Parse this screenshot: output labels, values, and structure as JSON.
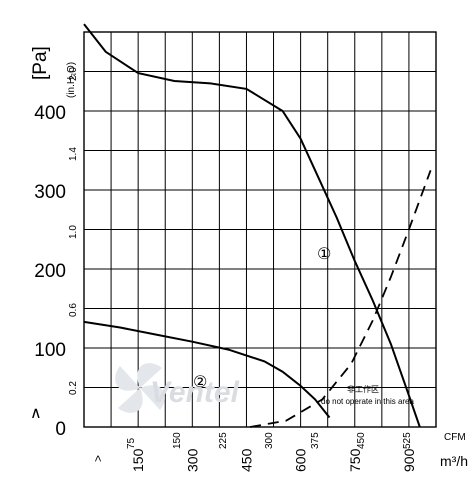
{
  "chart_data": {
    "type": "line",
    "title": "",
    "ylabel": "[Pa]",
    "ylabel_secondary": "(in.H₂O)",
    "xlabel_cfm": "CFM",
    "xlabel_m3h": "m³/h",
    "y_ticks_pa": [
      "0",
      "100",
      "200",
      "300",
      "400"
    ],
    "y_ticks_inh2o": [
      "0.2",
      "0.6",
      "1.0",
      "1.4",
      "2.0"
    ],
    "x_ticks_cfm": [
      "75",
      "150",
      "225",
      "300",
      "375",
      "450",
      "525"
    ],
    "x_ticks_m3h": [
      "150",
      "300",
      "450",
      "600",
      "750",
      "900"
    ],
    "xlim_m3h": [
      0,
      975
    ],
    "ylim_pa": [
      0,
      500
    ],
    "grid": true,
    "series": [
      {
        "name": "①",
        "style": "solid",
        "x": [
          0,
          60,
          150,
          250,
          350,
          450,
          550,
          600,
          650,
          700,
          750,
          800,
          850,
          900,
          930
        ],
        "y": [
          510,
          475,
          448,
          438,
          435,
          428,
          400,
          365,
          315,
          265,
          210,
          160,
          105,
          40,
          0
        ]
      },
      {
        "name": "②",
        "style": "solid",
        "x": [
          0,
          100,
          200,
          300,
          400,
          500,
          550,
          600,
          640,
          680
        ],
        "y": [
          133,
          126,
          117,
          108,
          98,
          83,
          70,
          52,
          35,
          12
        ]
      },
      {
        "name": "",
        "style": "dashed",
        "x": [
          460,
          560,
          660,
          740,
          800,
          850,
          900,
          960
        ],
        "y": [
          0,
          8,
          35,
          80,
          135,
          190,
          250,
          325
        ]
      }
    ],
    "annotations": {
      "label_1": "①",
      "label_2": "②",
      "note_cn": "非工作区",
      "note_en": "do not operate in this area"
    }
  },
  "watermark": "Ventel"
}
